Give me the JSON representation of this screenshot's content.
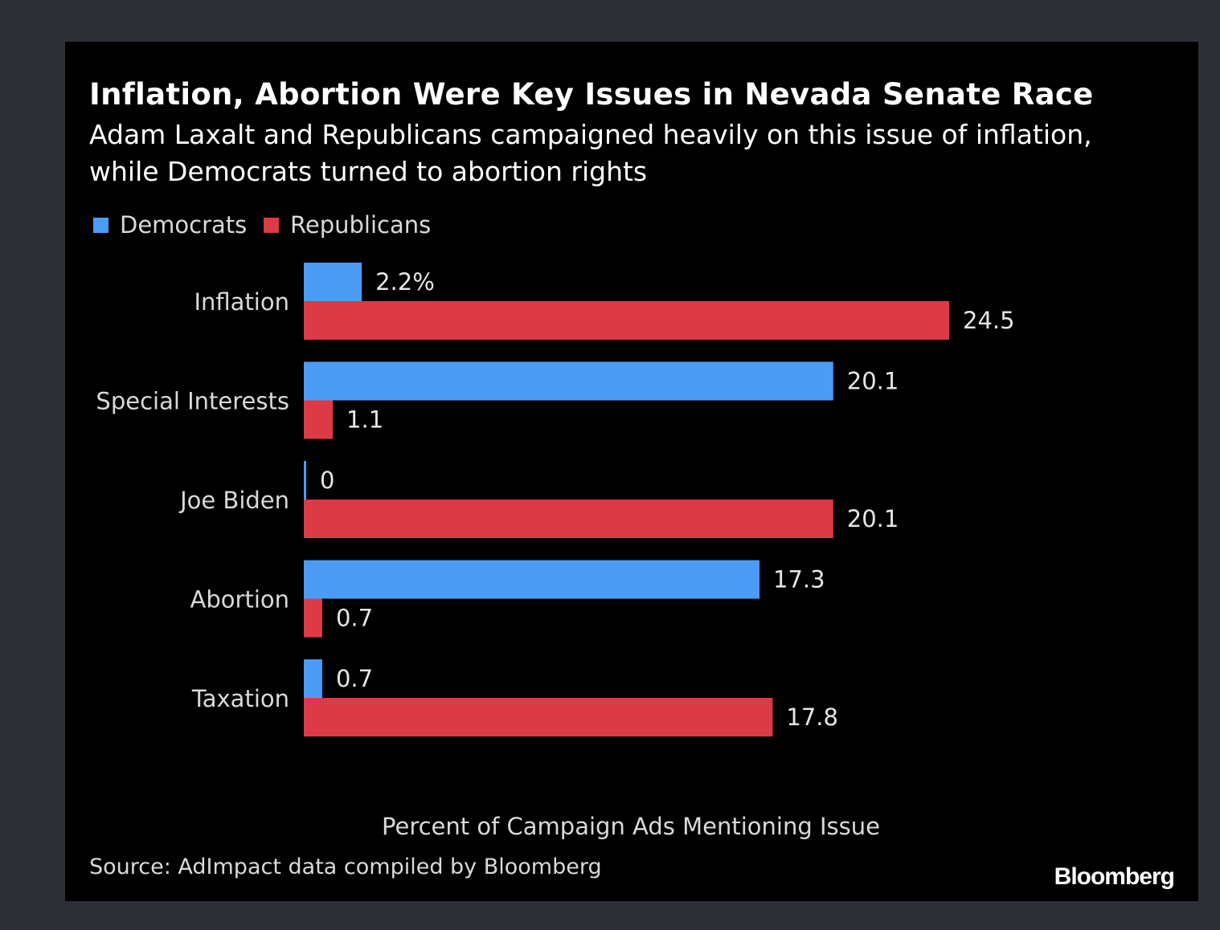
{
  "chart_data": {
    "type": "bar",
    "orientation": "horizontal",
    "title": "Inflation, Abortion Were Key Issues in Nevada Senate Race",
    "subtitle": "Adam Laxalt and Republicans campaigned heavily on this issue of inflation, while Democrats turned to abortion rights",
    "xlabel": "Percent of Campaign Ads Mentioning Issue",
    "ylabel": "",
    "categories": [
      "Inflation",
      "Special Interests",
      "Joe Biden",
      "Abortion",
      "Taxation"
    ],
    "series": [
      {
        "name": "Democrats",
        "color": "#4a9cf5",
        "values": [
          2.2,
          20.1,
          0,
          17.3,
          0.7
        ],
        "labels": [
          "2.2%",
          "20.1",
          "0",
          "17.3",
          "0.7"
        ]
      },
      {
        "name": "Republicans",
        "color": "#dc3a47",
        "values": [
          24.5,
          1.1,
          20.1,
          0.7,
          17.8
        ],
        "labels": [
          "24.5",
          "1.1",
          "20.1",
          "0.7",
          "17.8"
        ]
      }
    ],
    "xlim": [
      0,
      24.5
    ],
    "grid": false,
    "legend_position": "top-left",
    "source": "Source: AdImpact data compiled by Bloomberg",
    "brand": "Bloomberg"
  }
}
